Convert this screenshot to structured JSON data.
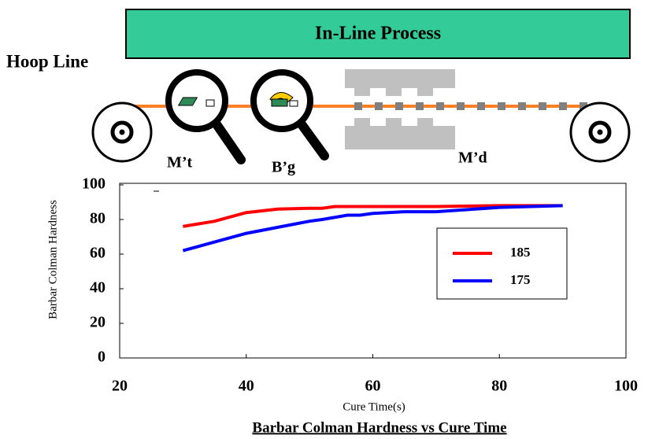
{
  "diagram": {
    "banner": "In-Line Process",
    "line_label": "Hoop Line",
    "stations": [
      "M’t",
      "B’g",
      "M’d"
    ]
  },
  "chart_data": {
    "type": "line",
    "title": "Barbar Colman Hardness vs Cure Time",
    "x_label": "Cure Time(s)",
    "y_label": "Barbar Colman Hardness",
    "xlim": [
      20,
      100
    ],
    "xticks": [
      20,
      40,
      60,
      80,
      100
    ],
    "ylim": [
      0,
      100
    ],
    "yticks": [
      0,
      20,
      40,
      60,
      80,
      100
    ],
    "grid": false,
    "series": [
      {
        "name": "185",
        "color": "#ff0000",
        "x": [
          30,
          35,
          38,
          40,
          45,
          50,
          52,
          54,
          60,
          70,
          80,
          90
        ],
        "values": [
          76,
          79,
          82,
          84,
          86,
          86.5,
          86.5,
          87.5,
          87.5,
          87.5,
          88,
          88
        ]
      },
      {
        "name": "175",
        "color": "#0000ff",
        "x": [
          30,
          35,
          40,
          45,
          50,
          52,
          56,
          58,
          60,
          65,
          70,
          80,
          90
        ],
        "values": [
          62,
          67,
          72,
          75.5,
          79,
          80,
          82.5,
          82.5,
          83.5,
          84.5,
          84.5,
          87,
          88
        ]
      }
    ]
  }
}
